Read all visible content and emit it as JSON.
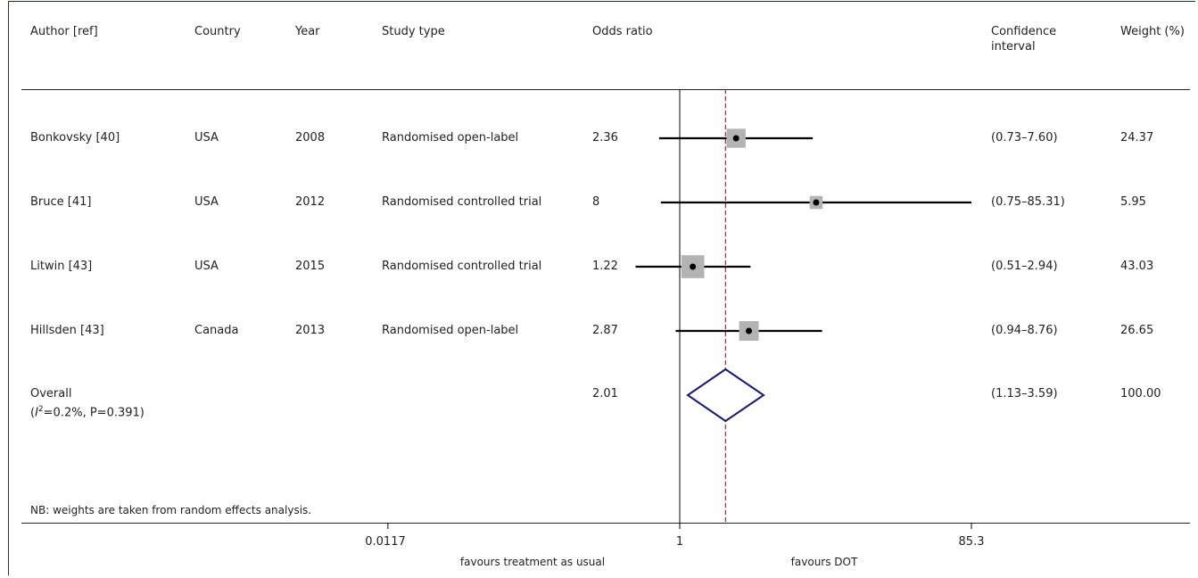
{
  "headers": {
    "author": "Author [ref]",
    "country": "Country",
    "year": "Year",
    "study_type": "Study type",
    "odds_ratio": "Odds ratio",
    "ci_line1": "Confidence",
    "ci_line2": "interval",
    "weight": "Weight (%)"
  },
  "rows": [
    {
      "author": "Bonkovsky [40]",
      "country": "USA",
      "year": "2008",
      "study_type": "Randomised open-label",
      "or": "2.36",
      "ci": "(0.73–7.60)",
      "weight": "24.37"
    },
    {
      "author": "Bruce [41]",
      "country": "USA",
      "year": "2012",
      "study_type": "Randomised controlled trial",
      "or": "8",
      "ci": "(0.75–85.31)",
      "weight": "5.95"
    },
    {
      "author": "Litwin [43]",
      "country": "USA",
      "year": "2015",
      "study_type": "Randomised controlled trial",
      "or": "1.22",
      "ci": "(0.51–2.94)",
      "weight": "43.03"
    },
    {
      "author": "Hillsden [43]",
      "country": "Canada",
      "year": "2013",
      "study_type": "Randomised open-label",
      "or": "2.87",
      "ci": "(0.94–8.76)",
      "weight": "26.65"
    }
  ],
  "overall": {
    "label": "Overall",
    "i2_symbol": "I",
    "i2_sup": "2",
    "i2_rest": "=0.2%, P=0.391)",
    "or": "2.01",
    "ci": "(1.13–3.59)",
    "weight": "100.00"
  },
  "note": "NB: weights are taken from random effects analysis.",
  "axis": {
    "ticks": [
      "0.0117",
      "1",
      "85.3"
    ],
    "favours_left": "favours treatment as usual",
    "favours_right": "favours DOT"
  },
  "colors": {
    "box": "#b3b3b3",
    "diamond": "#1a1a6e",
    "dashed": "#e02020",
    "line": "#000000"
  },
  "chart_data": {
    "type": "forest",
    "scale": "log",
    "xlim": [
      0.0117,
      85.3
    ],
    "x_ticks": [
      0.0117,
      1,
      85.3
    ],
    "null_line": 1,
    "pooled_line": 2.01,
    "studies": [
      {
        "label": "Bonkovsky [40]",
        "or": 2.36,
        "lower": 0.73,
        "upper": 7.6,
        "weight": 24.37
      },
      {
        "label": "Bruce [41]",
        "or": 8,
        "lower": 0.75,
        "upper": 85.31,
        "weight": 5.95
      },
      {
        "label": "Litwin [43]",
        "or": 1.22,
        "lower": 0.51,
        "upper": 2.94,
        "weight": 43.03
      },
      {
        "label": "Hillsden [43]",
        "or": 2.87,
        "lower": 0.94,
        "upper": 8.76,
        "weight": 26.65
      }
    ],
    "overall": {
      "or": 2.01,
      "lower": 1.13,
      "upper": 3.59,
      "weight": 100.0
    }
  }
}
